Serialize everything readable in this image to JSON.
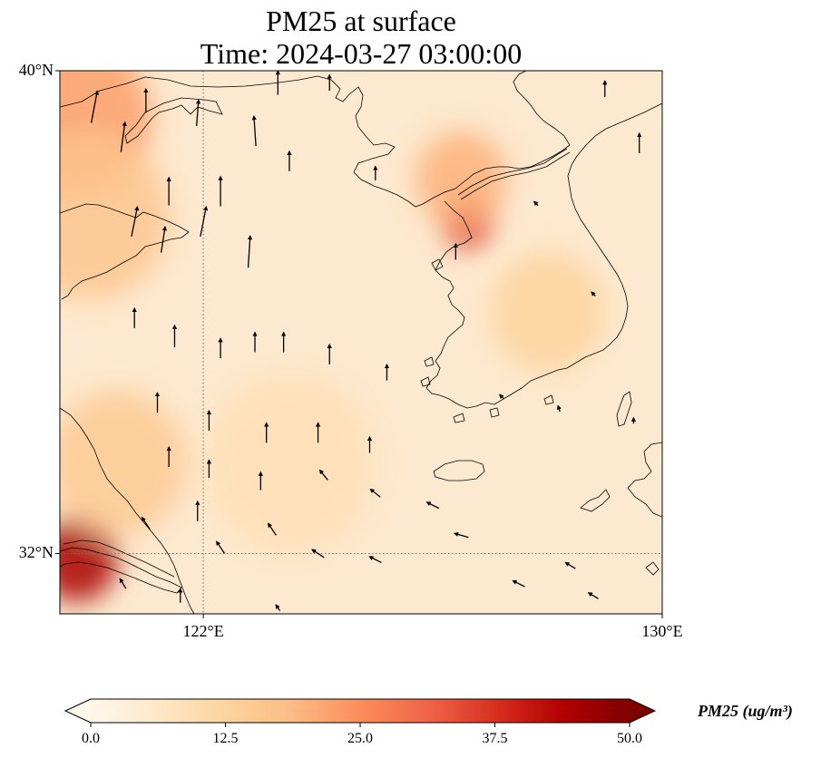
{
  "title": {
    "line1": "PM25 at surface",
    "line2": "Time: 2024-03-27 03:00:00"
  },
  "map": {
    "extent": {
      "lon_min": 119.5,
      "lon_max": 130.0,
      "lat_min": 31.0,
      "lat_max": 40.0
    },
    "gridlines": {
      "style": "dotted",
      "lons": [
        122
      ],
      "lats": [
        32
      ]
    },
    "lat_ticks": [
      {
        "value": 40,
        "label": "40°N"
      },
      {
        "value": 32,
        "label": "32°N"
      }
    ],
    "lon_ticks": [
      {
        "value": 122,
        "label": "122°E"
      },
      {
        "value": 130,
        "label": "130°E"
      }
    ],
    "hotspots": [
      {
        "lon": 119.8,
        "lat": 39.2,
        "intensity": 0.45,
        "spread": 1.3
      },
      {
        "lon": 120.0,
        "lat": 37.6,
        "intensity": 0.32,
        "spread": 1.4
      },
      {
        "lon": 126.6,
        "lat": 37.5,
        "intensity": 0.72,
        "spread": 0.45
      },
      {
        "lon": 126.5,
        "lat": 38.2,
        "intensity": 0.4,
        "spread": 0.8
      },
      {
        "lon": 119.8,
        "lat": 31.9,
        "intensity": 0.9,
        "spread": 0.7
      },
      {
        "lon": 120.5,
        "lat": 33.5,
        "intensity": 0.3,
        "spread": 1.2
      },
      {
        "lon": 128.0,
        "lat": 36.0,
        "intensity": 0.25,
        "spread": 1.0
      },
      {
        "lon": 123.5,
        "lat": 33.5,
        "intensity": 0.18,
        "spread": 1.5
      }
    ],
    "wind_vectors": [
      {
        "lon": 120.1,
        "lat": 39.4,
        "u": 0.3,
        "v": 1.6
      },
      {
        "lon": 120.6,
        "lat": 38.9,
        "u": 0.2,
        "v": 1.5
      },
      {
        "lon": 121.0,
        "lat": 39.5,
        "u": 0.0,
        "v": 1.2
      },
      {
        "lon": 121.4,
        "lat": 38.0,
        "u": 0.0,
        "v": 1.4
      },
      {
        "lon": 121.9,
        "lat": 39.3,
        "u": 0.1,
        "v": 1.3
      },
      {
        "lon": 122.3,
        "lat": 38.0,
        "u": 0.0,
        "v": 1.5
      },
      {
        "lon": 122.9,
        "lat": 39.0,
        "u": -0.1,
        "v": 1.5
      },
      {
        "lon": 123.3,
        "lat": 39.8,
        "u": 0.0,
        "v": 1.2
      },
      {
        "lon": 120.8,
        "lat": 37.5,
        "u": 0.3,
        "v": 1.5
      },
      {
        "lon": 121.3,
        "lat": 37.2,
        "u": 0.2,
        "v": 1.3
      },
      {
        "lon": 122.0,
        "lat": 37.5,
        "u": 0.3,
        "v": 1.5
      },
      {
        "lon": 122.8,
        "lat": 37.0,
        "u": 0.1,
        "v": 1.6
      },
      {
        "lon": 123.5,
        "lat": 38.5,
        "u": 0.0,
        "v": 1.0
      },
      {
        "lon": 124.2,
        "lat": 39.8,
        "u": 0.0,
        "v": 0.8
      },
      {
        "lon": 125.0,
        "lat": 38.3,
        "u": 0.0,
        "v": 0.7
      },
      {
        "lon": 126.4,
        "lat": 37.0,
        "u": 0.0,
        "v": 0.8
      },
      {
        "lon": 120.8,
        "lat": 35.9,
        "u": 0.0,
        "v": 1.0
      },
      {
        "lon": 121.5,
        "lat": 35.6,
        "u": 0.0,
        "v": 1.1
      },
      {
        "lon": 122.3,
        "lat": 35.4,
        "u": 0.0,
        "v": 1.0
      },
      {
        "lon": 122.9,
        "lat": 35.5,
        "u": 0.0,
        "v": 1.0
      },
      {
        "lon": 123.4,
        "lat": 35.5,
        "u": 0.0,
        "v": 1.0
      },
      {
        "lon": 124.2,
        "lat": 35.3,
        "u": 0.0,
        "v": 1.0
      },
      {
        "lon": 125.2,
        "lat": 35.0,
        "u": 0.0,
        "v": 0.8
      },
      {
        "lon": 121.2,
        "lat": 34.5,
        "u": 0.0,
        "v": 1.0
      },
      {
        "lon": 122.1,
        "lat": 34.2,
        "u": 0.0,
        "v": 1.0
      },
      {
        "lon": 123.1,
        "lat": 34.0,
        "u": 0.0,
        "v": 1.0
      },
      {
        "lon": 124.0,
        "lat": 34.0,
        "u": 0.0,
        "v": 1.0
      },
      {
        "lon": 124.9,
        "lat": 33.8,
        "u": 0.0,
        "v": 0.8
      },
      {
        "lon": 121.4,
        "lat": 33.6,
        "u": 0.0,
        "v": 1.0
      },
      {
        "lon": 122.1,
        "lat": 33.4,
        "u": 0.0,
        "v": 0.9
      },
      {
        "lon": 123.0,
        "lat": 33.2,
        "u": 0.0,
        "v": 0.9
      },
      {
        "lon": 124.1,
        "lat": 33.3,
        "u": -0.4,
        "v": 0.5
      },
      {
        "lon": 125.0,
        "lat": 33.0,
        "u": -0.5,
        "v": 0.4
      },
      {
        "lon": 126.0,
        "lat": 32.8,
        "u": -0.6,
        "v": 0.3
      },
      {
        "lon": 121.0,
        "lat": 32.5,
        "u": -0.4,
        "v": 0.6
      },
      {
        "lon": 121.9,
        "lat": 32.7,
        "u": 0.0,
        "v": 1.0
      },
      {
        "lon": 122.3,
        "lat": 32.1,
        "u": -0.4,
        "v": 0.6
      },
      {
        "lon": 123.2,
        "lat": 32.4,
        "u": -0.4,
        "v": 0.6
      },
      {
        "lon": 124.0,
        "lat": 32.0,
        "u": -0.6,
        "v": 0.4
      },
      {
        "lon": 125.0,
        "lat": 31.9,
        "u": -0.6,
        "v": 0.3
      },
      {
        "lon": 126.5,
        "lat": 32.3,
        "u": -0.7,
        "v": 0.2
      },
      {
        "lon": 127.5,
        "lat": 31.5,
        "u": -0.6,
        "v": 0.3
      },
      {
        "lon": 128.4,
        "lat": 31.8,
        "u": -0.5,
        "v": 0.3
      },
      {
        "lon": 128.8,
        "lat": 31.3,
        "u": -0.5,
        "v": 0.3
      },
      {
        "lon": 120.6,
        "lat": 31.5,
        "u": -0.3,
        "v": 0.5
      },
      {
        "lon": 121.6,
        "lat": 31.3,
        "u": 0.0,
        "v": 0.7
      },
      {
        "lon": 123.3,
        "lat": 31.1,
        "u": -0.2,
        "v": 0.3
      },
      {
        "lon": 129.6,
        "lat": 38.8,
        "u": 0.0,
        "v": 1.0
      },
      {
        "lon": 129.0,
        "lat": 39.7,
        "u": 0.0,
        "v": 0.8
      },
      {
        "lon": 127.8,
        "lat": 37.8,
        "u": -0.2,
        "v": 0.2
      },
      {
        "lon": 128.8,
        "lat": 36.3,
        "u": -0.2,
        "v": 0.2
      },
      {
        "lon": 127.2,
        "lat": 34.6,
        "u": -0.2,
        "v": 0.2
      },
      {
        "lon": 128.2,
        "lat": 34.4,
        "u": -0.1,
        "v": 0.3
      },
      {
        "lon": 129.5,
        "lat": 34.2,
        "u": 0.0,
        "v": 0.3
      }
    ]
  },
  "colorbar": {
    "label": "PM25 (ug/m³)",
    "min": 0.0,
    "max": 50.0,
    "extend": "both",
    "cmap": "OrRd",
    "ticks": [
      {
        "value": 0.0,
        "label": "0.0"
      },
      {
        "value": 12.5,
        "label": "12.5"
      },
      {
        "value": 25.0,
        "label": "25.0"
      },
      {
        "value": 37.5,
        "label": "37.5"
      },
      {
        "value": 50.0,
        "label": "50.0"
      }
    ],
    "stops": [
      "#fff7ec",
      "#fee8c8",
      "#fdd49e",
      "#fdbb84",
      "#fc8d59",
      "#ef6548",
      "#d7301f",
      "#b30000",
      "#7f0000"
    ]
  },
  "colors": {
    "background_field": "#fde9cf",
    "coastline": "#000000",
    "gridline": "#7a6a5a"
  }
}
